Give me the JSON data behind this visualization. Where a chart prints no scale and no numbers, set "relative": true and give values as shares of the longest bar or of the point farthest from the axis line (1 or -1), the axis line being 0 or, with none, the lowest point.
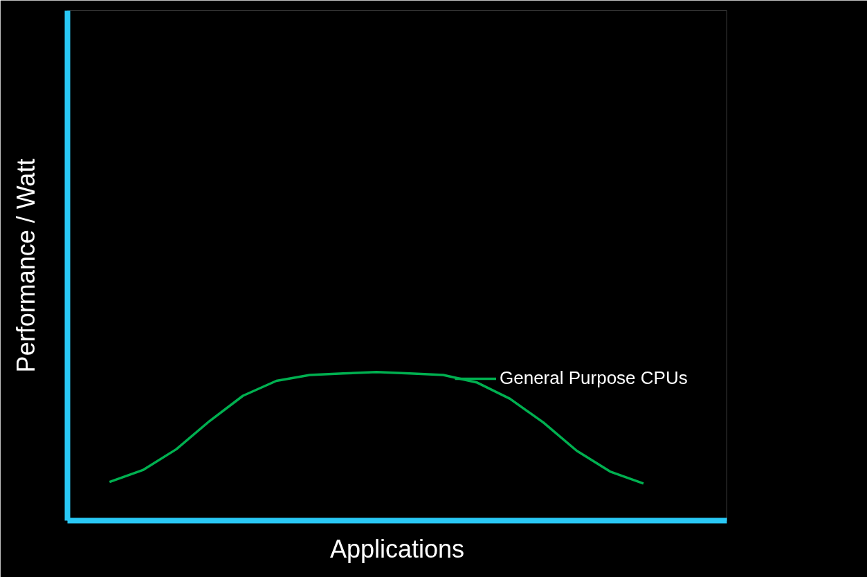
{
  "chart_data": {
    "type": "line",
    "relative": true,
    "xlabel": "Applications",
    "ylabel": "Performance / Watt",
    "categories": [
      null,
      null,
      null,
      null,
      null,
      null,
      null,
      null,
      null,
      null,
      null,
      null,
      null,
      null,
      null,
      null,
      null
    ],
    "series": [
      {
        "name": "General Purpose CPUs",
        "color": "#00b050",
        "values": [
          0.26,
          0.34,
          0.48,
          0.67,
          0.84,
          0.94,
          0.98,
          0.99,
          1.0,
          0.99,
          0.98,
          0.93,
          0.82,
          0.66,
          0.47,
          0.33,
          0.25
        ]
      }
    ],
    "legend": "right",
    "marker": "none",
    "line_style": "solid"
  }
}
